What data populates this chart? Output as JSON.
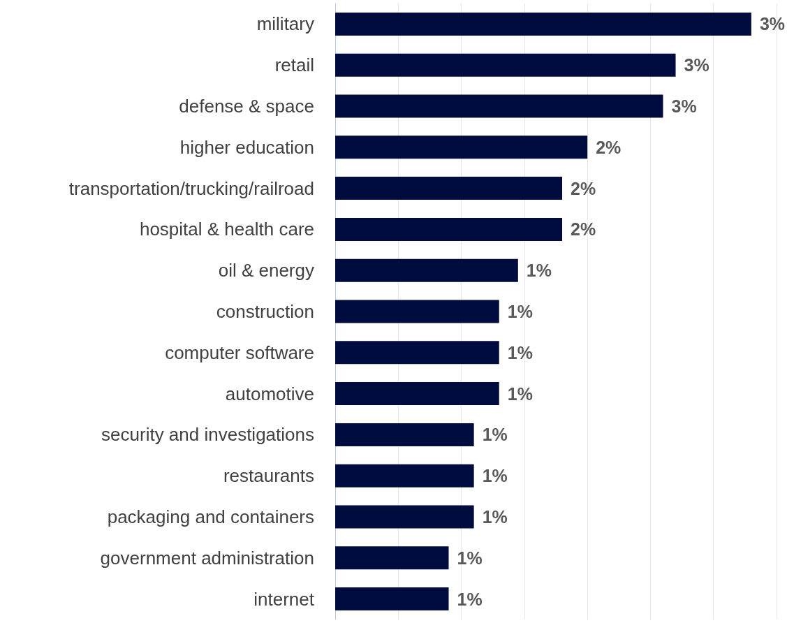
{
  "chart_data": {
    "type": "bar",
    "orientation": "horizontal",
    "grid": "x",
    "categories": [
      "military",
      "retail",
      "defense & space",
      "higher education",
      "transportation/trucking/railroad",
      "hospital & health care",
      "oil & energy",
      "construction",
      "computer software",
      "automotive",
      "security and investigations",
      "restaurants",
      "packaging and containers",
      "government administration",
      "internet"
    ],
    "values": [
      3.3,
      2.7,
      2.6,
      2.0,
      1.8,
      1.8,
      1.45,
      1.3,
      1.3,
      1.3,
      1.1,
      1.1,
      1.1,
      0.9,
      0.9
    ],
    "value_labels": [
      "3%",
      "3%",
      "3%",
      "2%",
      "2%",
      "2%",
      "1%",
      "1%",
      "1%",
      "1%",
      "1%",
      "1%",
      "1%",
      "1%",
      "1%"
    ],
    "xlim": [
      0,
      3.5
    ],
    "xticks": [
      {
        "value": 0,
        "label": null
      },
      {
        "value": 0.5,
        "label": null
      },
      {
        "value": 1,
        "label": null
      },
      {
        "value": 1.5,
        "label": null
      },
      {
        "value": 2,
        "label": null
      },
      {
        "value": 2.5,
        "label": null
      },
      {
        "value": 3,
        "label": null
      },
      {
        "value": 3.5,
        "label": null
      }
    ],
    "color": "#000c3d"
  }
}
